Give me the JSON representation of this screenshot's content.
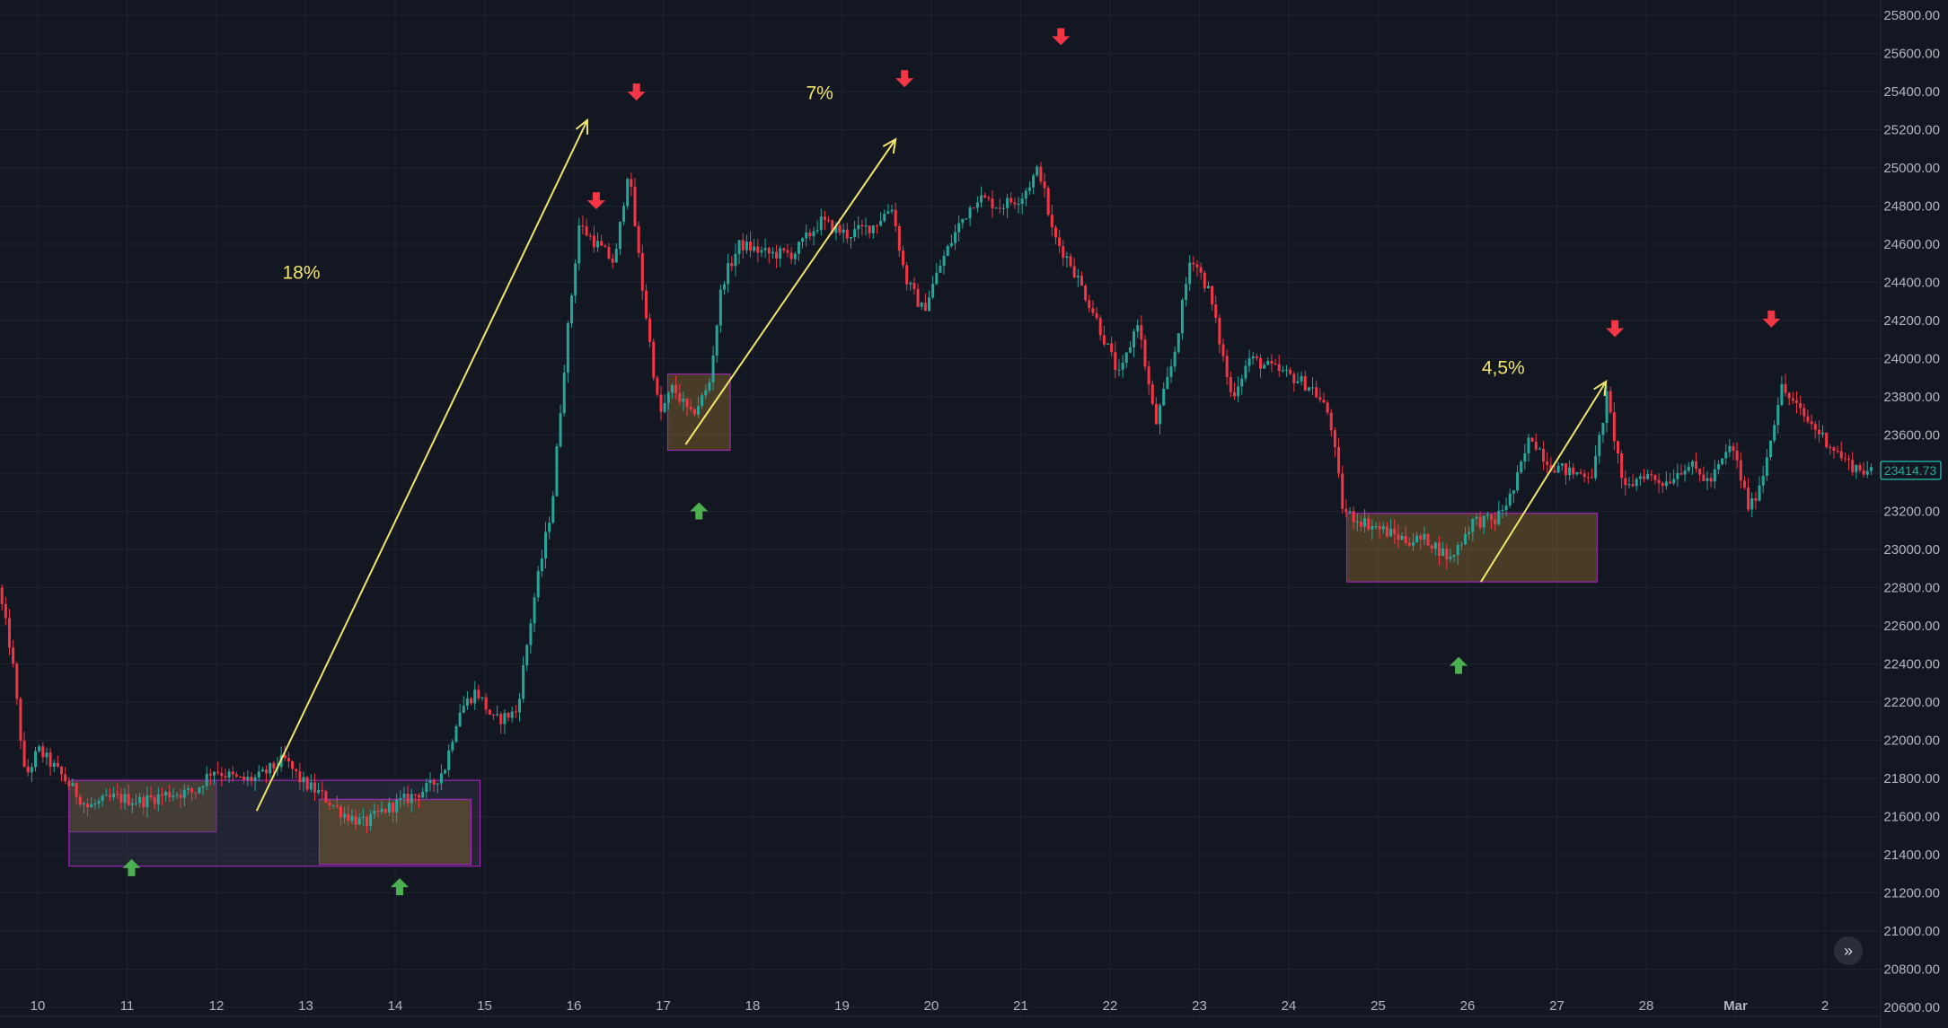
{
  "chart_data": {
    "type": "candlestick",
    "price_axis": {
      "ticks": [
        "25800.00",
        "25600.00",
        "25400.00",
        "25200.00",
        "25000.00",
        "24800.00",
        "24600.00",
        "24400.00",
        "24200.00",
        "24000.00",
        "23800.00",
        "23600.00",
        "23400.00",
        "23200.00",
        "23000.00",
        "22800.00",
        "22600.00",
        "22400.00",
        "22200.00",
        "22000.00",
        "21800.00",
        "21600.00",
        "21400.00",
        "21200.00",
        "21000.00",
        "20800.00",
        "20600.00"
      ],
      "ylim": [
        20600,
        25800
      ],
      "last_price": "23414.73"
    },
    "time_axis": {
      "ticks": [
        "10",
        "11",
        "12",
        "13",
        "14",
        "15",
        "16",
        "17",
        "18",
        "19",
        "20",
        "21",
        "22",
        "23",
        "24",
        "25",
        "26",
        "27",
        "28",
        "Mar",
        "2"
      ],
      "xlim": [
        9.6,
        30.7
      ]
    },
    "price_path": [
      [
        9.6,
        22800
      ],
      [
        9.75,
        22450
      ],
      [
        9.9,
        21800
      ],
      [
        10.05,
        21950
      ],
      [
        10.3,
        21820
      ],
      [
        10.6,
        21650
      ],
      [
        10.9,
        21700
      ],
      [
        11.2,
        21680
      ],
      [
        11.5,
        21720
      ],
      [
        11.8,
        21730
      ],
      [
        12.0,
        21850
      ],
      [
        12.3,
        21790
      ],
      [
        12.5,
        21800
      ],
      [
        12.8,
        21900
      ],
      [
        13.0,
        21780
      ],
      [
        13.2,
        21720
      ],
      [
        13.45,
        21620
      ],
      [
        13.7,
        21560
      ],
      [
        13.9,
        21630
      ],
      [
        14.2,
        21700
      ],
      [
        14.45,
        21760
      ],
      [
        14.6,
        21860
      ],
      [
        14.75,
        22150
      ],
      [
        14.95,
        22260
      ],
      [
        15.15,
        22100
      ],
      [
        15.4,
        22150
      ],
      [
        15.6,
        22750
      ],
      [
        15.8,
        23250
      ],
      [
        15.95,
        24050
      ],
      [
        16.1,
        24700
      ],
      [
        16.3,
        24600
      ],
      [
        16.5,
        24500
      ],
      [
        16.65,
        25000
      ],
      [
        16.8,
        24400
      ],
      [
        17.0,
        23700
      ],
      [
        17.15,
        23850
      ],
      [
        17.35,
        23700
      ],
      [
        17.55,
        23850
      ],
      [
        17.7,
        24400
      ],
      [
        17.9,
        24600
      ],
      [
        18.2,
        24550
      ],
      [
        18.5,
        24550
      ],
      [
        18.8,
        24720
      ],
      [
        19.1,
        24650
      ],
      [
        19.4,
        24700
      ],
      [
        19.6,
        24800
      ],
      [
        19.75,
        24420
      ],
      [
        19.95,
        24250
      ],
      [
        20.15,
        24500
      ],
      [
        20.35,
        24700
      ],
      [
        20.55,
        24850
      ],
      [
        20.8,
        24800
      ],
      [
        21.05,
        24850
      ],
      [
        21.25,
        25000
      ],
      [
        21.4,
        24650
      ],
      [
        21.6,
        24500
      ],
      [
        21.85,
        24250
      ],
      [
        22.15,
        23900
      ],
      [
        22.35,
        24200
      ],
      [
        22.55,
        23650
      ],
      [
        22.75,
        24000
      ],
      [
        22.95,
        24550
      ],
      [
        23.15,
        24350
      ],
      [
        23.4,
        23800
      ],
      [
        23.6,
        24000
      ],
      [
        23.85,
        23950
      ],
      [
        24.1,
        23900
      ],
      [
        24.3,
        23850
      ],
      [
        24.5,
        23700
      ],
      [
        24.65,
        23200
      ],
      [
        24.85,
        23150
      ],
      [
        25.1,
        23100
      ],
      [
        25.35,
        23050
      ],
      [
        25.6,
        23050
      ],
      [
        25.85,
        22950
      ],
      [
        26.1,
        23150
      ],
      [
        26.35,
        23150
      ],
      [
        26.55,
        23300
      ],
      [
        26.75,
        23600
      ],
      [
        26.95,
        23450
      ],
      [
        27.2,
        23400
      ],
      [
        27.45,
        23400
      ],
      [
        27.6,
        23800
      ],
      [
        27.8,
        23300
      ],
      [
        28.0,
        23400
      ],
      [
        28.25,
        23350
      ],
      [
        28.5,
        23450
      ],
      [
        28.75,
        23350
      ],
      [
        29.0,
        23550
      ],
      [
        29.2,
        23200
      ],
      [
        29.35,
        23400
      ],
      [
        29.55,
        23850
      ],
      [
        29.8,
        23700
      ],
      [
        30.0,
        23600
      ],
      [
        30.3,
        23450
      ],
      [
        30.55,
        23400
      ]
    ],
    "annotations": {
      "percent_labels": [
        {
          "text": "18%",
          "x": 12.95,
          "y": 24420
        },
        {
          "text": "7%",
          "x": 18.75,
          "y": 25360
        },
        {
          "text": "4,5%",
          "x": 26.4,
          "y": 23920
        }
      ],
      "arrows": [
        {
          "from": [
            12.45,
            21630
          ],
          "to": [
            16.15,
            25250
          ]
        },
        {
          "from": [
            17.25,
            23550
          ],
          "to": [
            19.6,
            25150
          ]
        },
        {
          "from": [
            26.15,
            22830
          ],
          "to": [
            27.55,
            23880
          ]
        }
      ],
      "sell_markers": [
        [
          16.25,
          24830
        ],
        [
          16.7,
          25400
        ],
        [
          19.7,
          25470
        ],
        [
          21.45,
          25690
        ],
        [
          27.65,
          24160
        ],
        [
          29.4,
          24210
        ]
      ],
      "buy_markers": [
        [
          11.05,
          21330
        ],
        [
          14.05,
          21230
        ],
        [
          17.4,
          23200
        ],
        [
          25.9,
          22390
        ]
      ],
      "ranges": [
        {
          "x0": 10.35,
          "x1": 12.0,
          "y0": 21520,
          "y1": 21790,
          "fill": "brown"
        },
        {
          "x0": 10.35,
          "x1": 14.95,
          "y0": 21340,
          "y1": 21790,
          "fill": "purple"
        },
        {
          "x0": 13.15,
          "x1": 14.85,
          "y0": 21350,
          "y1": 21690,
          "fill": "brown"
        },
        {
          "x0": 17.05,
          "x1": 17.75,
          "y0": 23520,
          "y1": 23920,
          "fill": "brown"
        },
        {
          "x0": 24.65,
          "x1": 27.45,
          "y0": 22830,
          "y1": 23190,
          "fill": "brown"
        }
      ]
    },
    "colors": {
      "up": "#26a69a",
      "down": "#f23645",
      "annotation": "#f0e46a",
      "buy_marker": "#4caf50",
      "sell_marker": "#f23645",
      "range_border": "#9c27b0",
      "range_fill": "#8b6a2e"
    },
    "grid": true
  },
  "controls": {
    "scroll_label": "»",
    "settings_icon": "gear-icon",
    "settings_glyph": "☼"
  }
}
